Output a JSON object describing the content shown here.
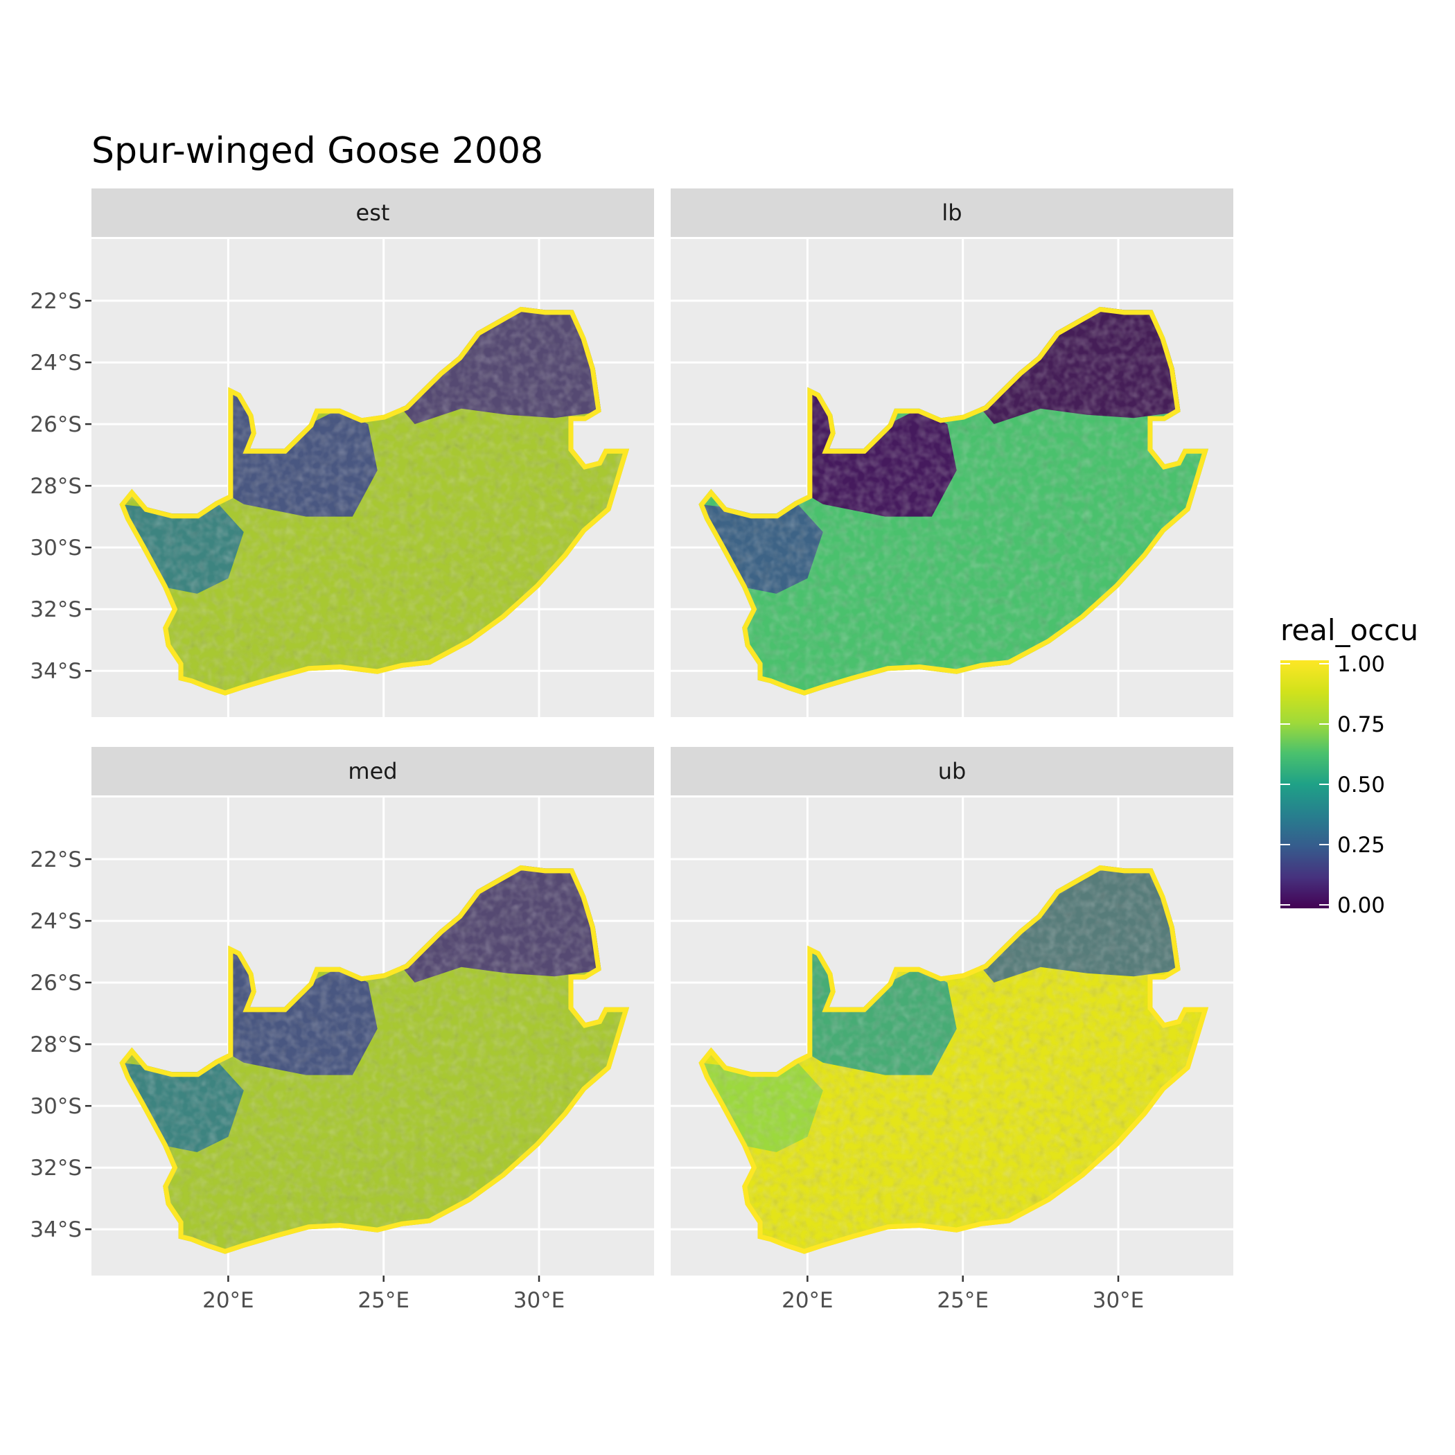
{
  "title": "Spur-winged Goose 2008",
  "panels": [
    {
      "label": "est"
    },
    {
      "label": "lb"
    },
    {
      "label": "med"
    },
    {
      "label": "ub"
    }
  ],
  "axes": {
    "lat_ticks": [
      "22°S",
      "24°S",
      "26°S",
      "28°S",
      "30°S",
      "32°S",
      "34°S"
    ],
    "lon_ticks": [
      "20°E",
      "25°E",
      "30°E"
    ]
  },
  "legend": {
    "title": "real_occu",
    "ticks": [
      "1.00",
      "0.75",
      "0.50",
      "0.25",
      "0.00"
    ],
    "colormap": "viridis"
  },
  "colors": {
    "panel_bg": "#ebebeb",
    "strip_bg": "#d9d9d9",
    "grid": "#ffffff",
    "viridis_low": "#440154",
    "viridis_mid": "#21918c",
    "viridis_high": "#fde725"
  }
}
